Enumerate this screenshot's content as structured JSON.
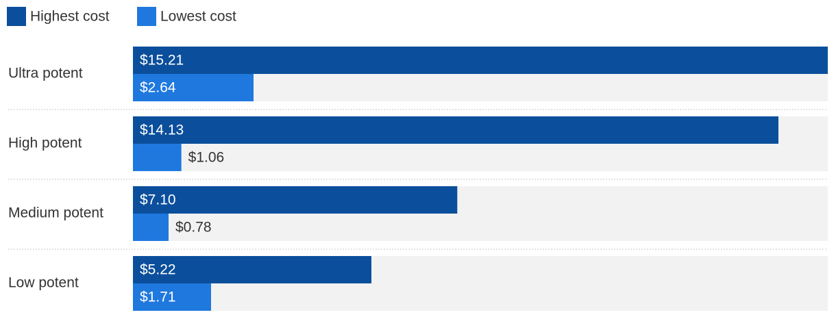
{
  "chart_data": {
    "type": "bar",
    "orientation": "horizontal",
    "categories": [
      "Ultra potent",
      "High potent",
      "Medium potent",
      "Low potent"
    ],
    "series": [
      {
        "name": "Highest cost",
        "color": "#0b4f9c",
        "values": [
          15.21,
          14.13,
          7.1,
          5.22
        ],
        "value_labels": [
          "$15.21",
          "$14.13",
          "$7.10",
          "$5.22"
        ]
      },
      {
        "name": "Lowest cost",
        "color": "#1f78de",
        "values": [
          2.64,
          1.06,
          0.78,
          1.71
        ],
        "value_labels": [
          "$2.64",
          "$1.06",
          "$0.78",
          "$1.71"
        ]
      }
    ],
    "xlim": [
      0,
      15.21
    ]
  }
}
